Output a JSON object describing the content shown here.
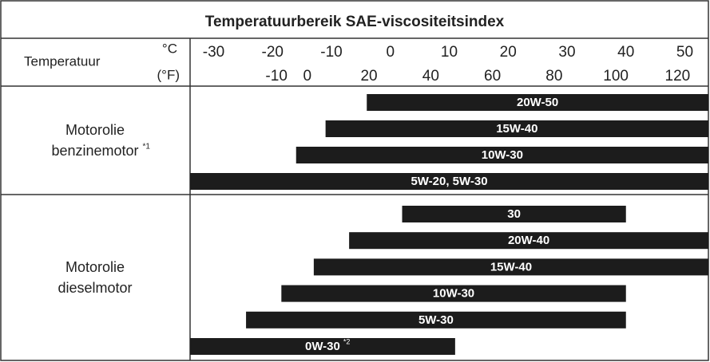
{
  "chart_data": {
    "type": "range-bar",
    "title": "Temperatuurbereik SAE-viscositeitsindex",
    "row_header": "Temperatuur",
    "x_unit": "°C",
    "x2_unit": "(°F)",
    "xlim": [
      -34,
      54
    ],
    "xticks": [
      -30,
      -20,
      -10,
      0,
      10,
      20,
      30,
      40,
      50
    ],
    "x2lim": [
      -38,
      130
    ],
    "x2ticks": [
      -10,
      0,
      20,
      40,
      60,
      80,
      100,
      120
    ],
    "color": "#1c1c1c",
    "groups": [
      {
        "name_lines": [
          "Motorolie",
          "benzinemotor"
        ],
        "note": "*1",
        "bars": [
          {
            "label": "20W-50",
            "start": -4,
            "end": 54
          },
          {
            "label": "15W-40",
            "start": -11,
            "end": 54
          },
          {
            "label": "10W-30",
            "start": -16,
            "end": 54
          },
          {
            "label": "5W-20, 5W-30",
            "start": -34,
            "end": 54
          }
        ]
      },
      {
        "name_lines": [
          "Motorolie",
          "dieselmotor"
        ],
        "bars": [
          {
            "label": "30",
            "start": 2,
            "end": 40
          },
          {
            "label": "20W-40",
            "start": -7,
            "end": 54
          },
          {
            "label": "15W-40",
            "start": -13,
            "end": 54
          },
          {
            "label": "10W-30",
            "start": -18.5,
            "end": 40
          },
          {
            "label": "5W-30",
            "start": -24.5,
            "end": 40
          },
          {
            "label": "0W-30",
            "note": "*2",
            "start": -34,
            "end": 11
          }
        ]
      }
    ]
  }
}
